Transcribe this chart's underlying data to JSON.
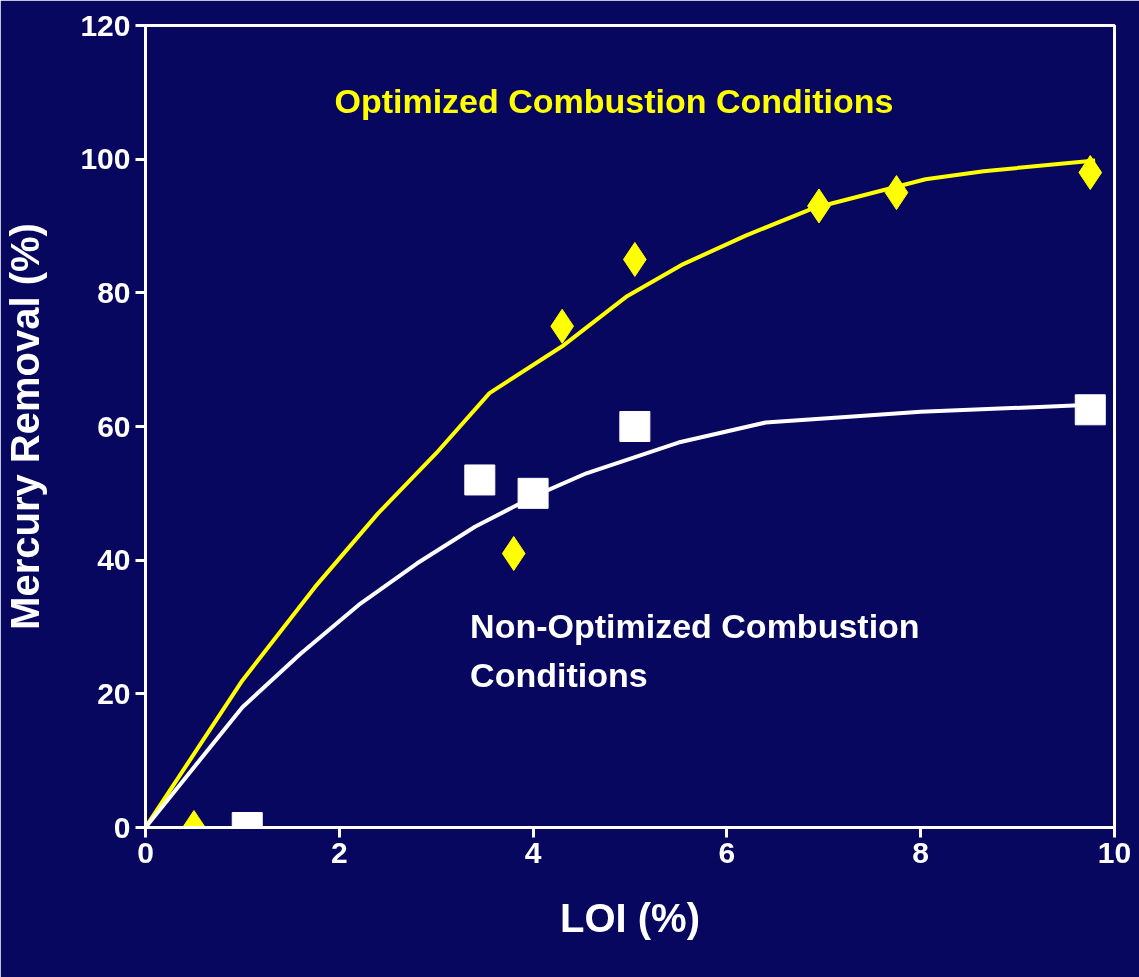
{
  "chart_data": {
    "type": "scatter",
    "xlabel": "LOI (%)",
    "ylabel": "Mercury Removal (%)",
    "xlim": [
      0,
      10
    ],
    "ylim": [
      0,
      120
    ],
    "xticks": [
      0,
      2,
      4,
      6,
      8,
      10
    ],
    "yticks": [
      0,
      20,
      40,
      60,
      80,
      100,
      120
    ],
    "grid": false,
    "series": [
      {
        "marker": "diamond",
        "color": "#ffff00",
        "x": [
          0.5,
          3.8,
          4.3,
          5.05,
          6.95,
          7.75,
          9.75
        ],
        "values": [
          0,
          41,
          75,
          85,
          93,
          95,
          98
        ]
      },
      {
        "marker": "square",
        "color": "#ffffff",
        "x": [
          1.05,
          3.45,
          4.0,
          5.05,
          9.75
        ],
        "values": [
          0,
          52,
          50,
          60,
          62.5
        ]
      },
      {
        "type": "line",
        "color": "#ffff00",
        "x": [
          0,
          1,
          1.75,
          2.4,
          3,
          3.55,
          4.3,
          4.96,
          5.55,
          6.2,
          6.9,
          8.05,
          8.65,
          9.8
        ],
        "values": [
          0,
          22,
          36,
          47,
          56,
          65,
          72,
          79.4,
          84.3,
          88.6,
          92.7,
          97,
          98.2,
          99.8
        ]
      },
      {
        "type": "line",
        "color": "#ffffff",
        "x": [
          0,
          1,
          1.6,
          2.2,
          2.8,
          3.4,
          4,
          4.55,
          5.5,
          6.4,
          7.3,
          8,
          9.7
        ],
        "values": [
          0,
          18,
          26,
          33.3,
          39.5,
          45,
          49.5,
          53,
          57.6,
          60.6,
          61.5,
          62.2,
          63.2
        ]
      }
    ],
    "annotations": [
      "Optimized Combustion Conditions",
      "Non-Optimized Combustion\nConditions"
    ]
  }
}
